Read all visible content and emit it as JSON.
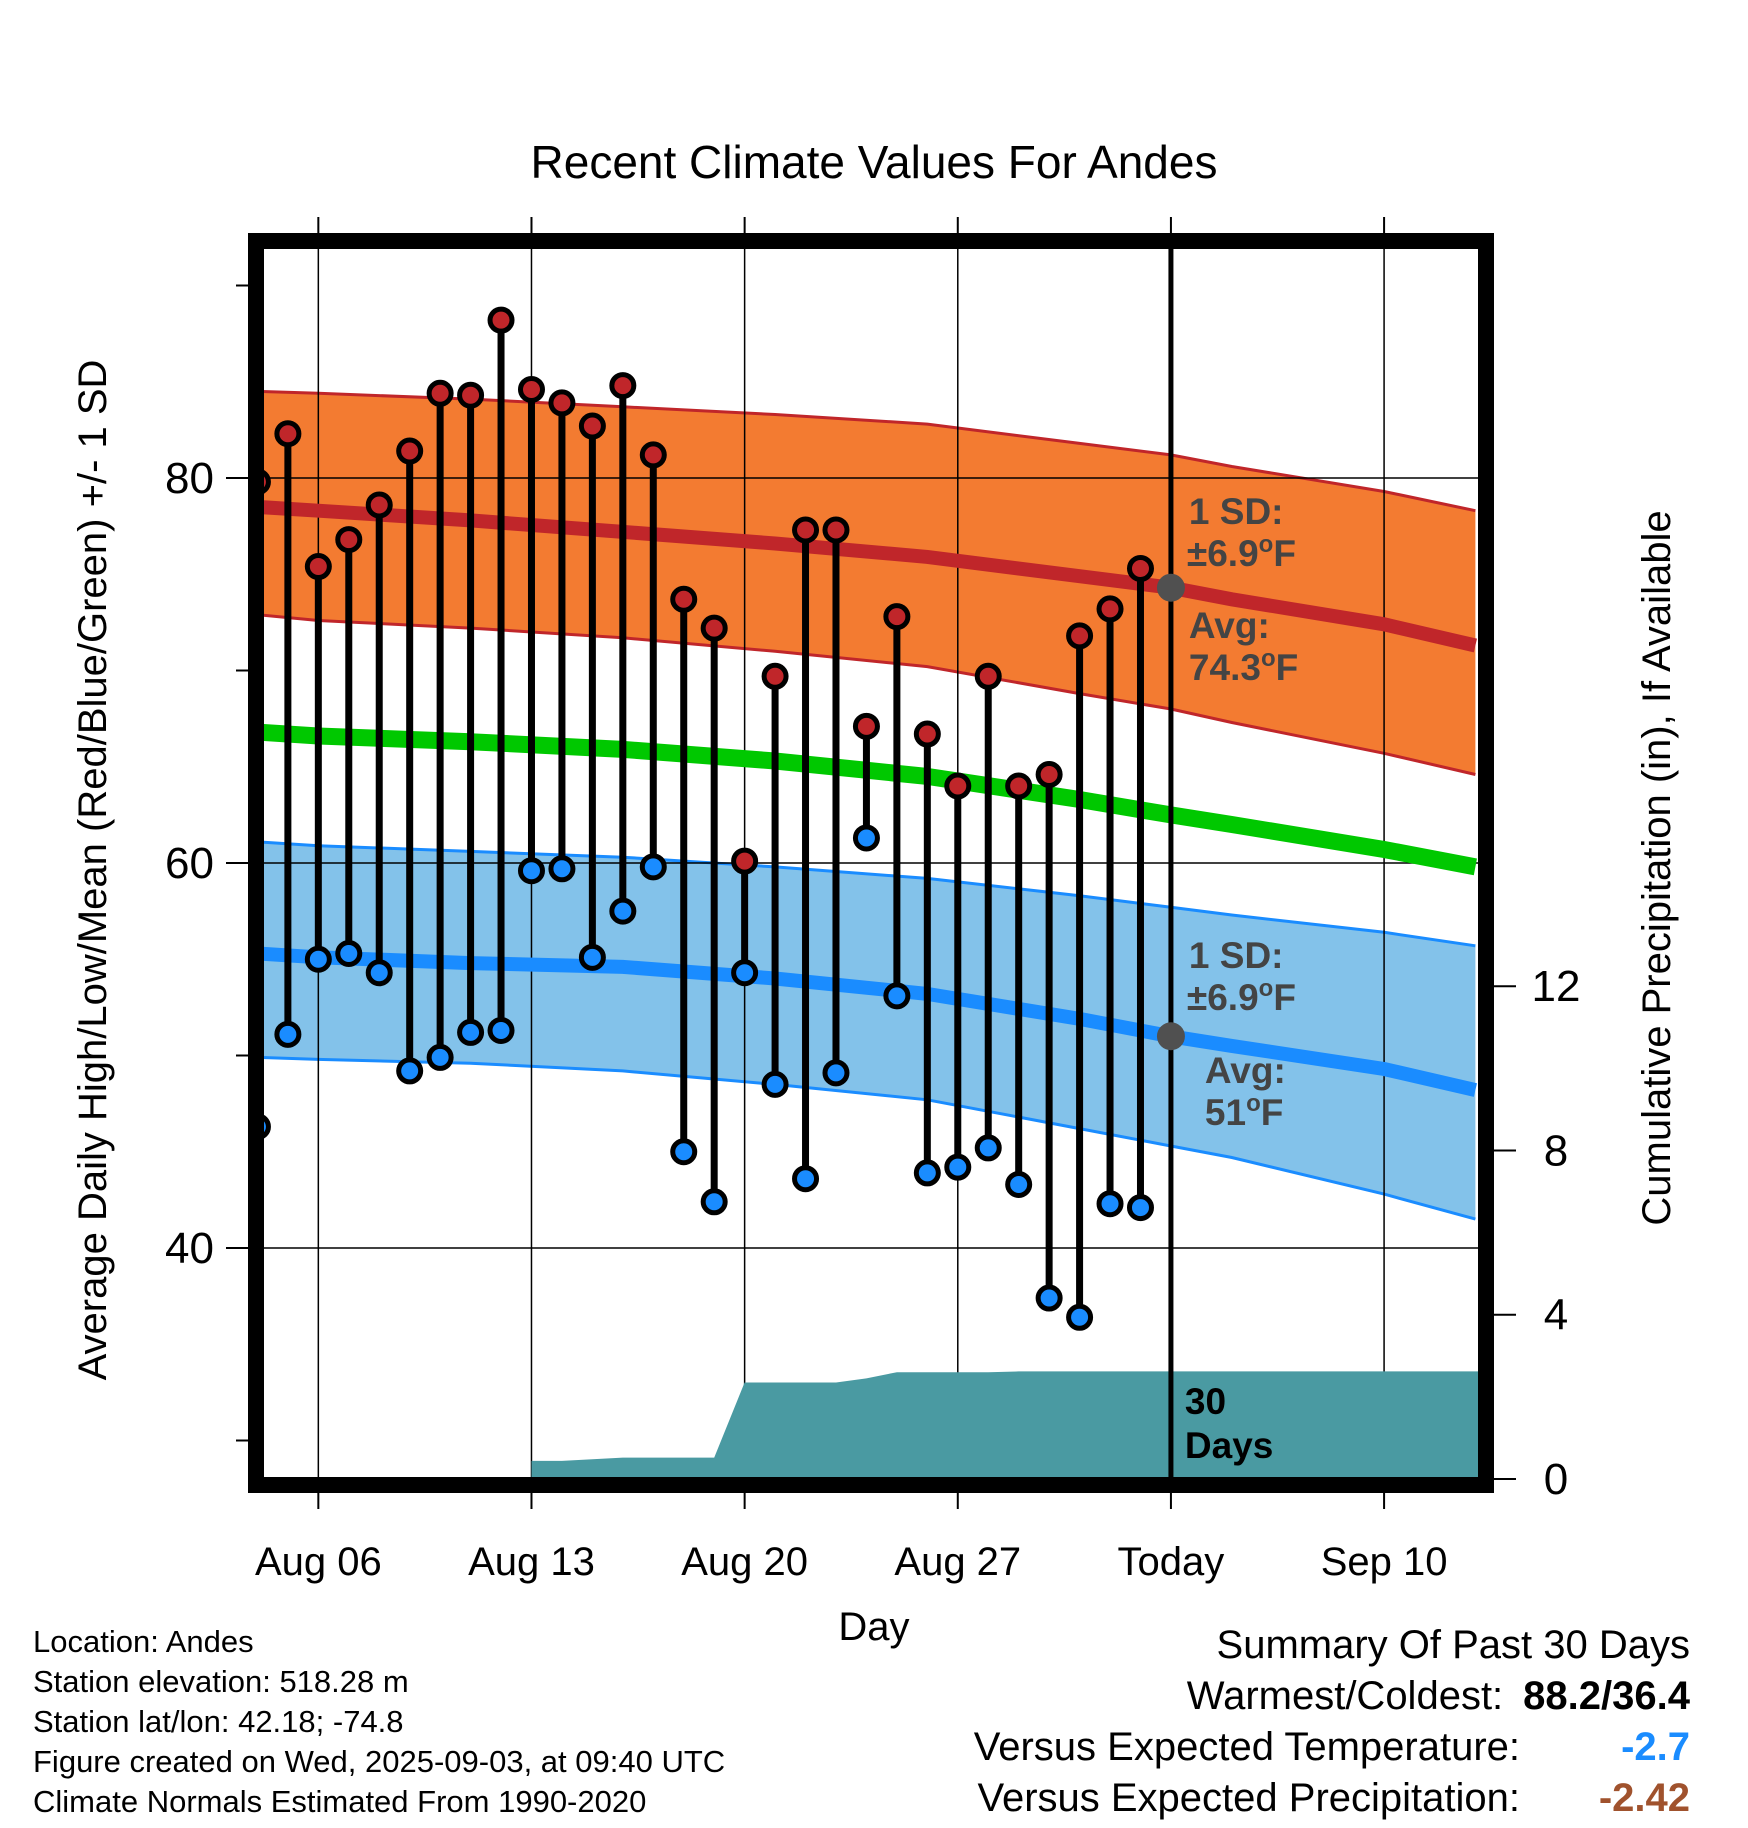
{
  "chart_data": {
    "type": "line",
    "title": "Recent Climate Values For Andes",
    "xlabel": "Day",
    "ylabel": "Average Daily High/Low/Mean (Red/Blue/Green) +/- 1 SD",
    "y2label": "Cumulative Precipitation (in), If Available",
    "ylim": [
      28,
      92
    ],
    "y2lim": [
      0,
      30
    ],
    "yticks": [
      40,
      60,
      80
    ],
    "y2ticks": [
      0,
      4,
      8,
      12
    ],
    "xlim": [
      -1.85,
      38.15
    ],
    "xticks": [
      {
        "x": 0,
        "label": "Aug 06"
      },
      {
        "x": 7,
        "label": "Aug 13"
      },
      {
        "x": 14,
        "label": "Aug 20"
      },
      {
        "x": 21,
        "label": "Aug 27"
      },
      {
        "x": 28,
        "label": "Today"
      },
      {
        "x": 35,
        "label": "Sep 10"
      }
    ],
    "grid": true,
    "today_x": 28,
    "colors": {
      "high": "#c0262a",
      "high_band": "#f37b31",
      "low": "#1a8cff",
      "low_band": "#83c2ea",
      "mean": "#00c800",
      "precip": "#4a9aa2",
      "avg_marker": "#505050"
    },
    "normals": {
      "x": [
        -2,
        0,
        5,
        10,
        15,
        20,
        25,
        28,
        30,
        35,
        38
      ],
      "high_avg": [
        78.5,
        78.3,
        77.8,
        77.2,
        76.6,
        75.9,
        74.9,
        74.3,
        73.7,
        72.4,
        71.3
      ],
      "high_upper": [
        84.5,
        84.4,
        84.1,
        83.7,
        83.3,
        82.8,
        81.8,
        81.2,
        80.6,
        79.3,
        78.3
      ],
      "high_lower": [
        72.9,
        72.6,
        72.2,
        71.7,
        71.0,
        70.2,
        68.8,
        68.0,
        67.3,
        65.7,
        64.6
      ],
      "mean_avg": [
        66.8,
        66.6,
        66.3,
        65.9,
        65.3,
        64.5,
        63.3,
        62.5,
        62.0,
        60.7,
        59.8
      ],
      "low_avg": [
        55.3,
        55.1,
        54.8,
        54.6,
        54.0,
        53.2,
        51.9,
        51.0,
        50.5,
        49.3,
        48.2
      ],
      "low_upper": [
        61.1,
        60.9,
        60.6,
        60.3,
        59.8,
        59.2,
        58.3,
        57.7,
        57.3,
        56.4,
        55.7
      ],
      "low_lower": [
        49.9,
        49.8,
        49.6,
        49.2,
        48.5,
        47.7,
        46.2,
        45.3,
        44.7,
        42.8,
        41.5
      ]
    },
    "series": [
      {
        "name": "High",
        "x": [
          -2,
          -1,
          0,
          1,
          2,
          3,
          4,
          5,
          6,
          7,
          8,
          9,
          10,
          11,
          12,
          13,
          14,
          15,
          16,
          17,
          18,
          19,
          20,
          21,
          22,
          23,
          24,
          25,
          26,
          27
        ],
        "values": [
          79.8,
          82.3,
          75.4,
          76.8,
          78.6,
          81.4,
          84.4,
          84.3,
          88.2,
          84.6,
          83.9,
          82.7,
          84.8,
          81.2,
          73.7,
          72.2,
          60.1,
          69.7,
          77.3,
          77.3,
          67.1,
          72.8,
          66.7,
          64.0,
          69.7,
          64.0,
          64.6,
          71.8,
          73.2,
          75.3
        ]
      },
      {
        "name": "Low",
        "x": [
          -2,
          -1,
          0,
          1,
          2,
          3,
          4,
          5,
          6,
          7,
          8,
          9,
          10,
          11,
          12,
          13,
          14,
          15,
          16,
          17,
          18,
          19,
          20,
          21,
          22,
          23,
          24,
          25,
          26,
          27
        ],
        "values": [
          46.3,
          51.1,
          55.0,
          55.3,
          54.3,
          49.2,
          49.9,
          51.2,
          51.3,
          59.6,
          59.7,
          55.1,
          57.5,
          59.8,
          45.0,
          42.4,
          54.3,
          48.5,
          43.6,
          49.1,
          61.3,
          53.1,
          43.9,
          44.2,
          45.2,
          43.3,
          37.4,
          36.4,
          42.3,
          42.1
        ]
      },
      {
        "name": "Cumulative Precipitation",
        "x": [
          7,
          8,
          9,
          10,
          11,
          12,
          13,
          14,
          15,
          16,
          17,
          18,
          19,
          20,
          21,
          22,
          23,
          24,
          25,
          26,
          27,
          28,
          38
        ],
        "values": [
          0.44,
          0.44,
          0.48,
          0.52,
          0.52,
          0.52,
          0.52,
          2.35,
          2.35,
          2.35,
          2.35,
          2.45,
          2.6,
          2.6,
          2.6,
          2.6,
          2.62,
          2.62,
          2.62,
          2.62,
          2.62,
          2.62,
          2.62
        ]
      }
    ],
    "annotations": {
      "high_sd_label": "1 SD:",
      "high_sd_value": "±6.9",
      "high_sd_unit": "F",
      "high_avg_label": "Avg:",
      "high_avg_value": "74.3",
      "high_avg_unit": "F",
      "low_sd_label": "1 SD:",
      "low_sd_value": "±6.9",
      "low_sd_unit": "F",
      "low_avg_label": "Avg:",
      "low_avg_value": "51",
      "low_avg_unit": "F",
      "degree": "o",
      "days_label_1": "30",
      "days_label_2": "Days"
    }
  },
  "meta": {
    "location": "Location: Andes",
    "elevation": "Station elevation: 518.28 m",
    "latlon": "Station lat/lon: 42.18; -74.8",
    "created": "Figure created on Wed, 2025-09-03, at 09:40 UTC",
    "normals": "Climate Normals Estimated From 1990-2020"
  },
  "summary": {
    "title": "Summary Of Past 30 Days",
    "warmest_label": "Warmest/Coldest:",
    "warmest_value": "88.2/36.4",
    "temp_label": "Versus Expected Temperature:",
    "temp_value": "-2.7",
    "temp_color": "#1a8cff",
    "precip_label": "Versus Expected Precipitation:",
    "precip_value": "-2.42",
    "precip_color": "#a0522d"
  }
}
